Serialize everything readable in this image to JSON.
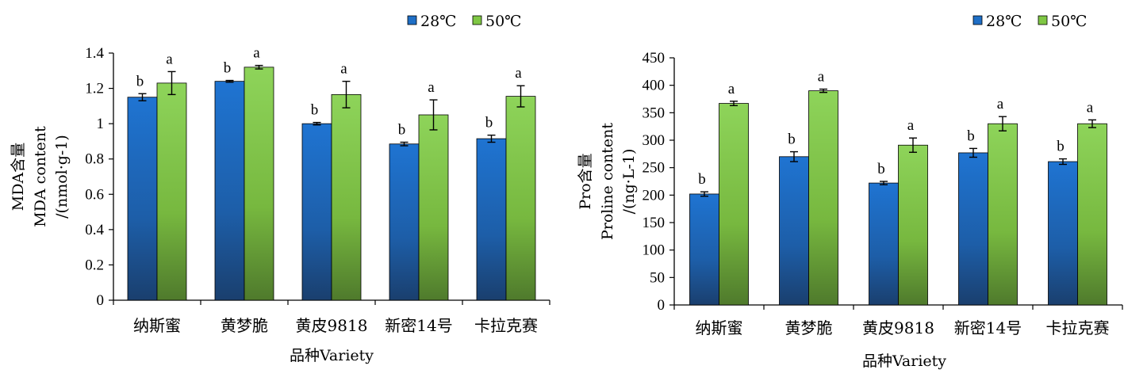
{
  "colors": {
    "series_28": "#1f6fc6",
    "series_50": "#7fc744",
    "axis": "#000000"
  },
  "chart_data": [
    {
      "type": "bar",
      "categories": [
        "纳斯蜜",
        "黄梦脆",
        "黄皮9818",
        "新密14号",
        "卡拉克赛"
      ],
      "series": [
        {
          "name": "28℃",
          "values": [
            1.15,
            1.24,
            1.0,
            0.885,
            0.915
          ],
          "errors": [
            0.02,
            0.005,
            0.007,
            0.01,
            0.02
          ],
          "labels": [
            "b",
            "b",
            "b",
            "b",
            "b"
          ]
        },
        {
          "name": "50℃",
          "values": [
            1.23,
            1.32,
            1.165,
            1.05,
            1.155
          ],
          "errors": [
            0.065,
            0.01,
            0.075,
            0.085,
            0.06
          ],
          "labels": [
            "a",
            "a",
            "a",
            "a",
            "a"
          ]
        }
      ],
      "xlabel": "品种Variety",
      "ylabel_lines": [
        "MDA含量",
        "MDA content",
        "/(nmol·g-1)"
      ],
      "ylim": [
        0,
        1.4
      ],
      "yticks": [
        "0",
        "0.2",
        "0.4",
        "0.6",
        "0.8",
        "1",
        "1.2",
        "1.4"
      ],
      "legend": [
        "28℃",
        "50℃"
      ],
      "legend_position": "top-right",
      "grid": false
    },
    {
      "type": "bar",
      "categories": [
        "纳斯蜜",
        "黄梦脆",
        "黄皮9818",
        "新密14号",
        "卡拉克赛"
      ],
      "series": [
        {
          "name": "28℃",
          "values": [
            202,
            270,
            222,
            277,
            261
          ],
          "errors": [
            4,
            9,
            3,
            8,
            5
          ],
          "labels": [
            "b",
            "b",
            "b",
            "b",
            "b"
          ]
        },
        {
          "name": "50℃",
          "values": [
            367,
            390,
            291,
            330,
            330
          ],
          "errors": [
            4,
            3,
            13,
            13,
            7
          ],
          "labels": [
            "a",
            "a",
            "a",
            "a",
            "a"
          ]
        }
      ],
      "xlabel": "品种Variety",
      "ylabel_lines": [
        "Pro含量",
        "Proline content",
        "/(ng·L-1)"
      ],
      "ylim": [
        0,
        450
      ],
      "yticks": [
        "0",
        "50",
        "100",
        "150",
        "200",
        "250",
        "300",
        "350",
        "400",
        "450"
      ],
      "legend": [
        "28℃",
        "50℃"
      ],
      "legend_position": "top-right",
      "grid": false
    }
  ]
}
